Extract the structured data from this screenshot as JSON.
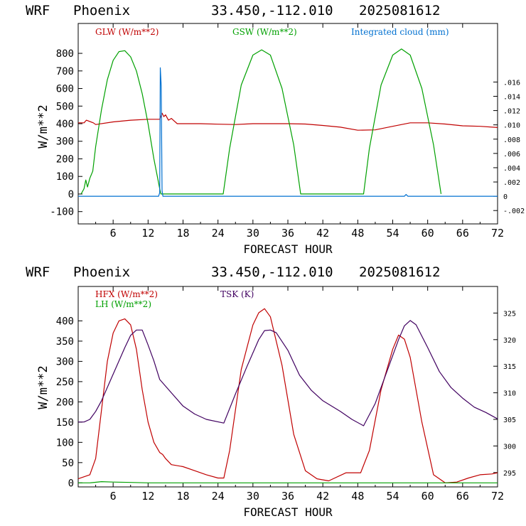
{
  "panels": [
    {
      "header": {
        "model": "WRF",
        "location": "Phoenix",
        "coords": "33.450,-112.010",
        "run": "2025081612"
      },
      "legend": [
        {
          "text": "GLW (W/m**2)",
          "color": "#c00000"
        },
        {
          "text": "GSW (W/m**2)",
          "color": "#00a000"
        },
        {
          "text": "Integrated cloud (mm)",
          "color": "#0070d0"
        }
      ]
    },
    {
      "header": {
        "model": "WRF",
        "location": "Phoenix",
        "coords": "33.450,-112.010",
        "run": "2025081612"
      },
      "legend": [
        {
          "text": "HFX (W/m**2)",
          "color": "#c00000"
        },
        {
          "text": "LH  (W/m**2)",
          "color": "#00a000"
        },
        {
          "text": "TSK (K)",
          "color": "#400060"
        }
      ]
    }
  ],
  "chart_data": [
    {
      "type": "line",
      "xlabel": "FORECAST HOUR",
      "ylabel": "W/m**2",
      "xlim": [
        0,
        72
      ],
      "ylim": [
        -170,
        970
      ],
      "x_ticks": [
        6,
        12,
        18,
        24,
        30,
        36,
        42,
        48,
        54,
        60,
        66,
        72
      ],
      "y_ticks": [
        -100,
        0,
        100,
        200,
        300,
        400,
        500,
        600,
        700,
        800
      ],
      "y2lim": [
        -0.00387,
        0.0242
      ],
      "y2_ticks": [
        -0.002,
        0,
        0.002,
        0.004,
        0.006,
        0.008,
        0.01,
        0.012,
        0.014,
        0.016
      ],
      "y2_tick_labels": [
        "-.002",
        "0",
        ".002",
        ".004",
        ".006",
        ".008",
        ".010",
        ".012",
        ".014",
        ".016"
      ],
      "series": [
        {
          "name": "GLW (W/m**2)",
          "axis": "left",
          "color": "#c00000",
          "x": [
            0,
            1,
            1.4,
            2.6,
            3,
            6,
            9,
            12,
            14,
            14.4,
            14.7,
            15,
            15.5,
            16,
            16.5,
            17,
            18,
            21,
            24,
            27,
            30,
            33,
            36,
            39,
            42,
            45,
            48,
            51,
            54,
            57,
            60,
            63,
            66,
            69,
            72
          ],
          "y": [
            405,
            405,
            420,
            405,
            395,
            410,
            420,
            425,
            425,
            460,
            440,
            450,
            420,
            430,
            415,
            400,
            400,
            400,
            397,
            395,
            400,
            400,
            400,
            398,
            390,
            380,
            363,
            365,
            385,
            405,
            405,
            398,
            388,
            385,
            378
          ]
        },
        {
          "name": "GSW (W/m**2)",
          "axis": "left",
          "color": "#00a000",
          "x": [
            0.5,
            1,
            1.3,
            1.6,
            2,
            2.5,
            3,
            4,
            5,
            6,
            7,
            8,
            9,
            10,
            11,
            12,
            13,
            14,
            14.2,
            24.9,
            26,
            28,
            30,
            31.5,
            33,
            35,
            37,
            38.2,
            49,
            50,
            52,
            54,
            55.5,
            57,
            59,
            61,
            62.3
          ],
          "y": [
            0,
            30,
            80,
            40,
            90,
            130,
            270,
            480,
            650,
            760,
            810,
            815,
            780,
            700,
            570,
            400,
            200,
            30,
            0,
            0,
            260,
            620,
            790,
            820,
            790,
            600,
            280,
            0,
            0,
            260,
            620,
            790,
            825,
            790,
            600,
            280,
            0
          ]
        },
        {
          "name": "Integrated cloud (mm)",
          "axis": "right",
          "color": "#0070d0",
          "x": [
            0,
            13.8,
            14,
            14.1,
            14.25,
            14.4,
            14.55,
            14.7,
            56,
            56.3,
            56.6,
            72
          ],
          "y": [
            0,
            0,
            0.0005,
            0.018,
            0.0155,
            0.0008,
            0,
            0,
            0,
            0.00025,
            0,
            0
          ]
        }
      ]
    },
    {
      "type": "line",
      "xlabel": "FORECAST HOUR",
      "ylabel": "W/m**2",
      "xlim": [
        0,
        72
      ],
      "ylim": [
        -10,
        485
      ],
      "x_ticks": [
        6,
        12,
        18,
        24,
        30,
        36,
        42,
        48,
        54,
        60,
        66,
        72
      ],
      "y_ticks": [
        0,
        50,
        100,
        150,
        200,
        250,
        300,
        350,
        400
      ],
      "y2lim": [
        292.3,
        330.0
      ],
      "y2_ticks": [
        295,
        300,
        305,
        310,
        315,
        320,
        325
      ],
      "y2_tick_labels": [
        "295",
        "300",
        "305",
        "310",
        "315",
        "320",
        "325"
      ],
      "series": [
        {
          "name": "HFX (W/m**2)",
          "axis": "left",
          "color": "#c00000",
          "x": [
            0,
            2,
            3,
            4,
            5,
            6,
            7,
            8,
            9,
            10,
            11,
            12,
            13,
            14,
            14.5,
            15,
            16,
            18,
            20,
            22,
            24,
            25,
            26,
            28,
            30,
            31,
            32,
            33,
            35,
            37,
            39,
            41,
            43,
            46,
            48.5,
            50,
            52,
            54,
            55,
            56,
            57,
            59,
            61,
            63,
            65,
            67,
            69,
            71,
            72
          ],
          "y": [
            10,
            20,
            60,
            180,
            300,
            370,
            400,
            405,
            390,
            330,
            230,
            150,
            100,
            75,
            70,
            60,
            45,
            40,
            30,
            20,
            12,
            12,
            80,
            280,
            390,
            420,
            430,
            410,
            290,
            120,
            30,
            10,
            5,
            25,
            25,
            80,
            230,
            330,
            365,
            355,
            310,
            150,
            20,
            0,
            2,
            12,
            20,
            22,
            25
          ]
        },
        {
          "name": "LH  (W/m**2)",
          "axis": "left",
          "color": "#00a000",
          "x": [
            0,
            2,
            4,
            6,
            9,
            12,
            72
          ],
          "y": [
            0,
            0,
            3,
            2,
            1,
            0,
            0
          ]
        },
        {
          "name": "TSK (K)",
          "axis": "right",
          "color": "#400060",
          "x": [
            0,
            1,
            2,
            3,
            4,
            6,
            8,
            9,
            10,
            11,
            12,
            13,
            14,
            16,
            18,
            20,
            22,
            25,
            27,
            29,
            31,
            32,
            33,
            34,
            36,
            38,
            40,
            42,
            45,
            47,
            49,
            51,
            53,
            55,
            56,
            57,
            58,
            60,
            62,
            64,
            66,
            68,
            70,
            72
          ],
          "y": [
            304.5,
            304.5,
            305,
            306.5,
            308.5,
            313.5,
            318.5,
            320.8,
            321.8,
            321.8,
            319,
            316,
            312.5,
            310,
            307.5,
            306,
            305,
            304.3,
            309.8,
            315,
            320,
            321.7,
            321.8,
            321.3,
            318,
            313.3,
            310.5,
            308.5,
            306.5,
            305,
            303.8,
            308,
            314,
            320,
            322.6,
            323.6,
            322.8,
            318.5,
            314,
            311,
            309,
            307.3,
            306.3,
            305.1
          ]
        }
      ]
    }
  ]
}
